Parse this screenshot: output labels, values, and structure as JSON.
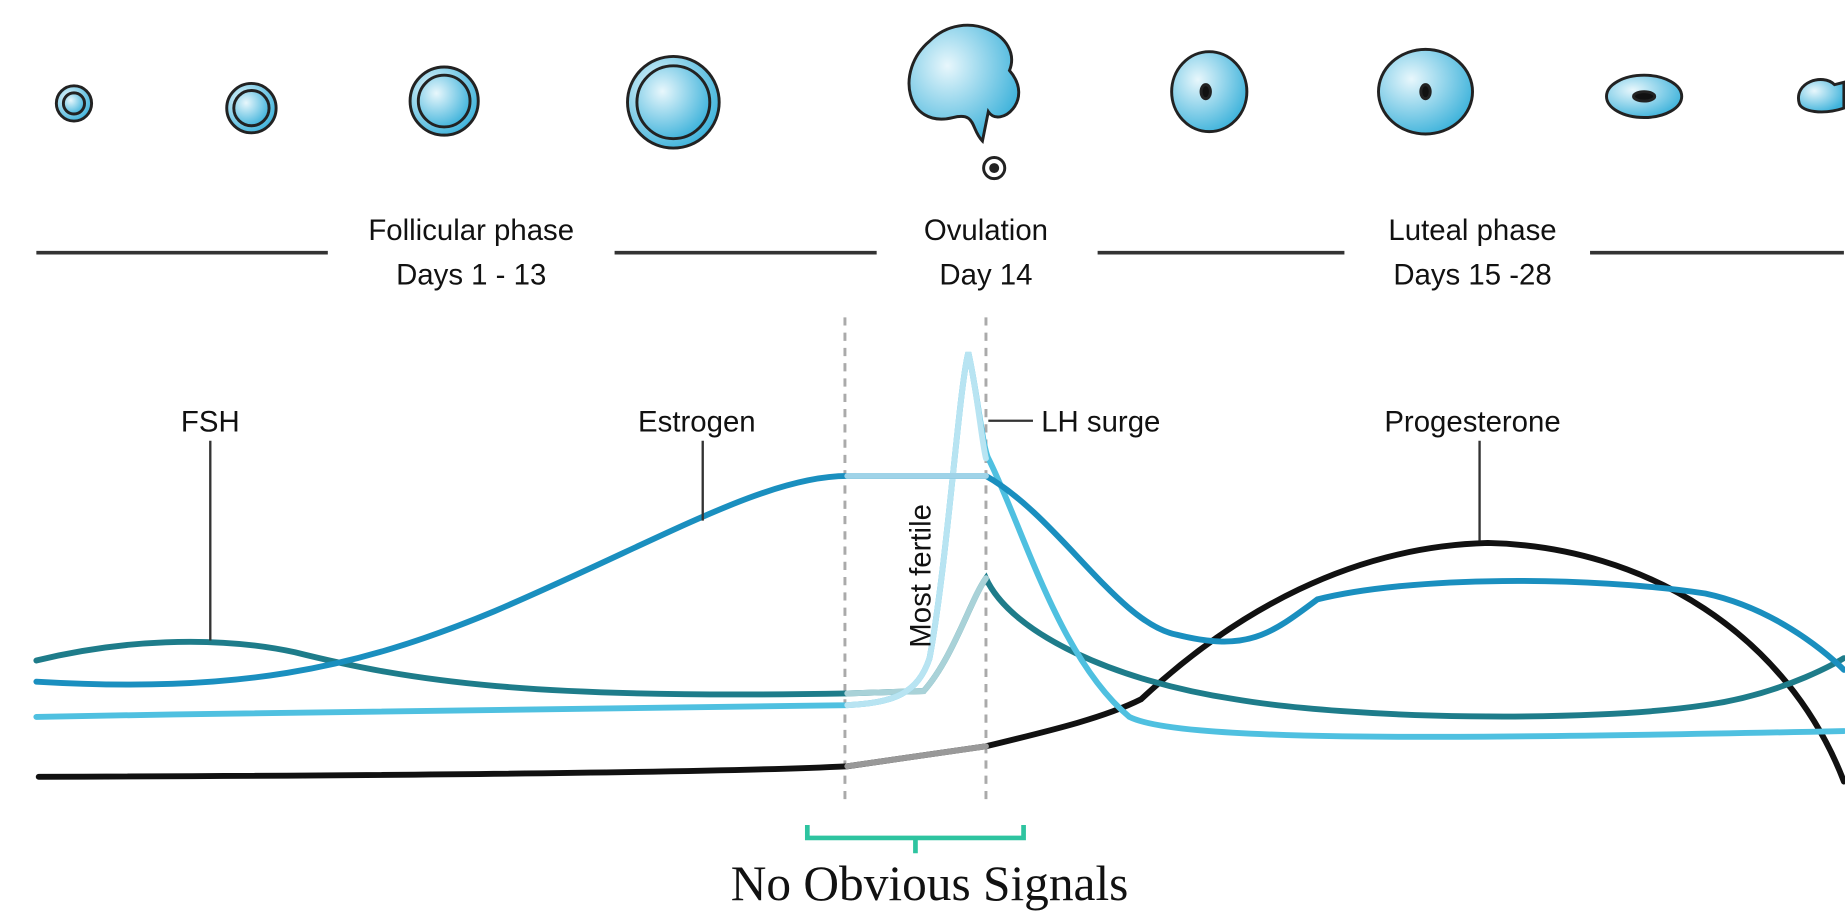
{
  "phases": [
    {
      "name": "Follicular phase",
      "days": "Days 1 - 13"
    },
    {
      "name": "Ovulation",
      "days": "Day 14"
    },
    {
      "name": "Luteal phase",
      "days": "Days 15 -28"
    }
  ],
  "hormones": [
    "FSH",
    "Estrogen",
    "LH surge",
    "Progesterone"
  ],
  "fertile_window": "Most fertile",
  "annotation": "No Obvious Signals"
}
